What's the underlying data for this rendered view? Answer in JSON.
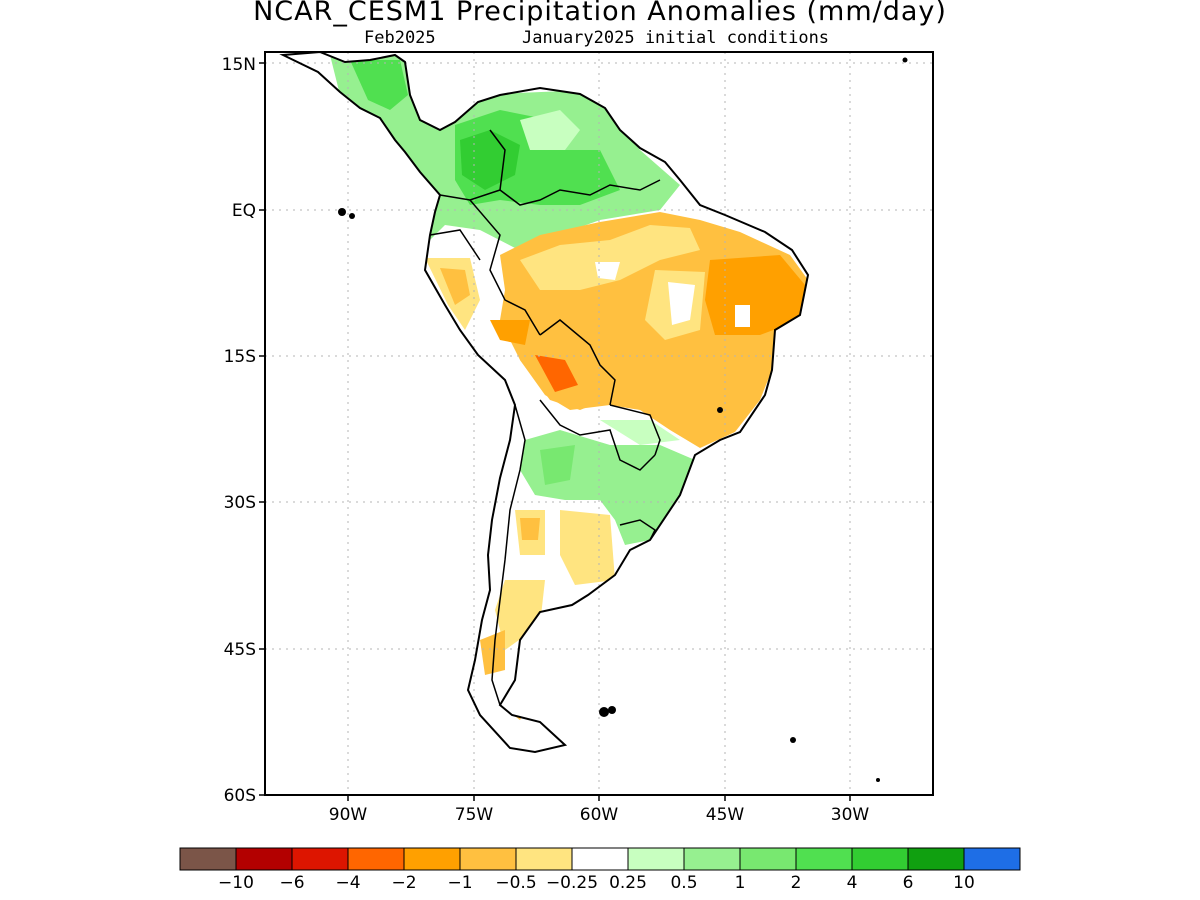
{
  "title": "NCAR_CESM1 Precipitation Anomalies (mm/day)",
  "subtitle_left": "Feb2025",
  "subtitle_right": "January2025 initial conditions",
  "lat_labels": [
    "15N",
    "EQ",
    "15S",
    "30S",
    "45S",
    "60S"
  ],
  "lon_labels": [
    "90W",
    "75W",
    "60W",
    "45W",
    "30W"
  ],
  "colorbar": {
    "colors": [
      "#7b5548",
      "#b30000",
      "#dd1500",
      "#ff6600",
      "#ffa000",
      "#ffc040",
      "#ffe480",
      "#ffffff",
      "#c8ffc0",
      "#96f090",
      "#78e870",
      "#50e050",
      "#32cd32",
      "#10a010",
      "#1e6ee6"
    ],
    "labels": [
      "−10",
      "−6",
      "−4",
      "−2",
      "−1",
      "−0.5",
      "−0.25",
      "0.25",
      "0.5",
      "1",
      "2",
      "4",
      "6",
      "10"
    ]
  }
}
